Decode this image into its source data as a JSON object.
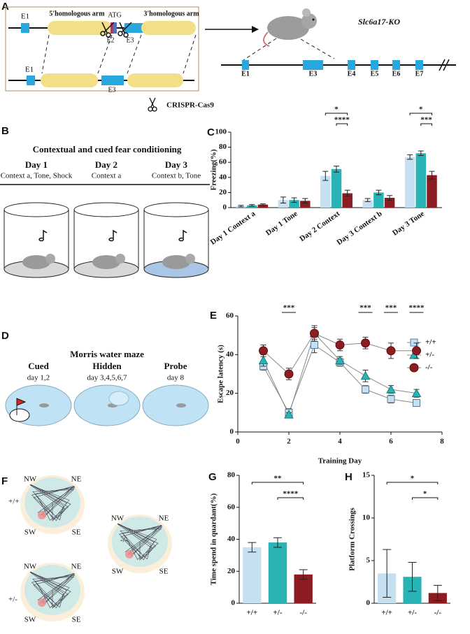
{
  "panel_a": {
    "letter": "A",
    "e1_top": "E1",
    "left_arm": "5'homologous arm",
    "atg": "ATG",
    "right_arm": "3'homologous arm",
    "e2": "E2",
    "e3_top": "E3",
    "e1_bottom": "E1",
    "e3_bottom": "E3",
    "mouse_label": "Slc6a17-KO",
    "exons": [
      "E1",
      "E3",
      "E4",
      "E5",
      "E6",
      "E7"
    ],
    "crispr": "CRISPR-Cas9"
  },
  "panel_b": {
    "letter": "B",
    "title": "Contextual and cued fear conditioning",
    "days": [
      {
        "day": "Day 1",
        "detail": "Context a, Tone, Shock"
      },
      {
        "day": "Day 2",
        "detail": "Context a"
      },
      {
        "day": "Day 3",
        "detail": "Context b, Tone"
      }
    ]
  },
  "panel_d": {
    "letter": "D",
    "title": "Morris water maze",
    "phases": [
      {
        "name": "Cued",
        "days": "day 1,2"
      },
      {
        "name": "Hidden",
        "days": "day 3,4,5,6,7"
      },
      {
        "name": "Probe",
        "days": "day 8"
      }
    ]
  },
  "panel_f": {
    "letter": "F",
    "genotypes": [
      "+/+",
      "+/-",
      "-/-"
    ],
    "directions": [
      "NW",
      "NE",
      "SW",
      "SE"
    ]
  },
  "chart_data": [
    {
      "type": "grouped-bar",
      "panel": "C",
      "ylabel": "Freezing(%)",
      "categories": [
        "Day 1 Context a",
        "Day 1 Tone",
        "Day 2 Context",
        "Day 3 Context b",
        "Day 3 Tone"
      ],
      "series": [
        {
          "color": "#c6e0f2",
          "values": [
            2,
            10,
            42,
            10,
            67
          ],
          "errors": [
            1,
            4,
            6,
            2,
            3
          ]
        },
        {
          "color": "#2ab3b5",
          "values": [
            3,
            10,
            51,
            20,
            72
          ],
          "errors": [
            1,
            3,
            4,
            3,
            3
          ]
        },
        {
          "color": "#8c1c22",
          "values": [
            4,
            9,
            19,
            13,
            43
          ],
          "errors": [
            1,
            3,
            4,
            3,
            5
          ]
        }
      ],
      "ylim": [
        0,
        100
      ],
      "yticks": [
        0,
        20,
        40,
        60,
        80,
        100
      ],
      "annotations": [
        "*",
        "****",
        "*",
        "***"
      ]
    },
    {
      "type": "line",
      "panel": "E",
      "xlabel": "Training Day",
      "ylabel": "Escape latency (s)",
      "x": [
        1,
        2,
        3,
        4,
        5,
        6,
        7
      ],
      "series": [
        {
          "name": "+/+",
          "color": "#c6e0f2",
          "marker": "square",
          "values": [
            34,
            10,
            45,
            36,
            22,
            17,
            15
          ],
          "errors": [
            2,
            2,
            4,
            2,
            2,
            2,
            1
          ]
        },
        {
          "name": "+/-",
          "color": "#2ab3b5",
          "marker": "triangle",
          "values": [
            37,
            9,
            51,
            37,
            29,
            22,
            20
          ],
          "errors": [
            3,
            1,
            4,
            2,
            3,
            2,
            2
          ]
        },
        {
          "name": "-/-",
          "color": "#8c1c22",
          "marker": "circle",
          "values": [
            42,
            30,
            51,
            45,
            46,
            42,
            42
          ],
          "errors": [
            3,
            3,
            3,
            3,
            3,
            4,
            4
          ]
        }
      ],
      "xlim": [
        0,
        8
      ],
      "xticks": [
        0,
        2,
        4,
        6,
        8
      ],
      "ylim": [
        0,
        60
      ],
      "yticks": [
        0,
        20,
        40,
        60
      ],
      "annotations": [
        "***",
        "***",
        "***",
        "****"
      ],
      "legend": "right"
    },
    {
      "type": "bar",
      "panel": "G",
      "ylabel": "Time spend in quardant(%)",
      "categories": [
        "+/+",
        "+/-",
        "-/-"
      ],
      "values": [
        35,
        38,
        18
      ],
      "errors": [
        3,
        3,
        3
      ],
      "colors": [
        "#c6e0f2",
        "#2ab3b5",
        "#8c1c22"
      ],
      "ylim": [
        0,
        80
      ],
      "yticks": [
        0,
        20,
        40,
        60,
        80
      ],
      "annotations": [
        "**",
        "****"
      ]
    },
    {
      "type": "bar",
      "panel": "H",
      "ylabel": "Platform Crossings",
      "categories": [
        "+/+",
        "+/-",
        "-/-"
      ],
      "values": [
        3.5,
        3.1,
        1.2
      ],
      "errors": [
        2.8,
        1.7,
        0.9
      ],
      "colors": [
        "#c6e0f2",
        "#2ab3b5",
        "#8c1c22"
      ],
      "ylim": [
        0,
        15
      ],
      "yticks": [
        0,
        5,
        10,
        15
      ],
      "annotations": [
        "*",
        "*"
      ]
    }
  ]
}
